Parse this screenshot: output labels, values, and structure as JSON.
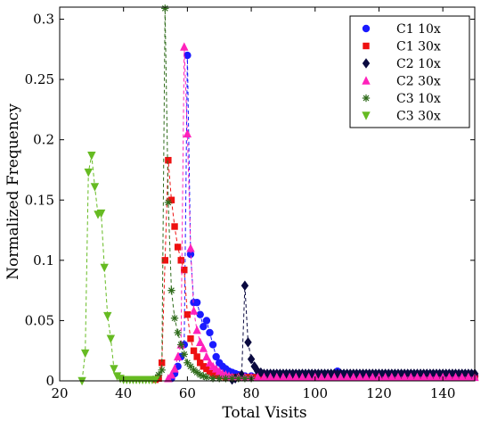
{
  "chart_data": {
    "type": "scatter",
    "xlabel": "Total Visits",
    "ylabel": "Normalized Frequency",
    "xlim": [
      20,
      150
    ],
    "ylim": [
      0,
      0.31
    ],
    "xticks": [
      "20",
      "40",
      "60",
      "80",
      "100",
      "120",
      "140"
    ],
    "yticks": [
      "0",
      "0.05",
      "0.1",
      "0.15",
      "0.2",
      "0.25",
      "0.3"
    ],
    "grid": false,
    "legend_position": "top-right",
    "line_style": "dashed",
    "series": [
      {
        "name": "C1 10x",
        "marker": "circle",
        "color": "#1a1aff",
        "points": [
          [
            55,
            0.002
          ],
          [
            56,
            0.006
          ],
          [
            57,
            0.012
          ],
          [
            58,
            0.02
          ],
          [
            59,
            0.03
          ],
          [
            60,
            0.27
          ],
          [
            61,
            0.105
          ],
          [
            62,
            0.065
          ],
          [
            63,
            0.065
          ],
          [
            64,
            0.055
          ],
          [
            65,
            0.045
          ],
          [
            66,
            0.05
          ],
          [
            67,
            0.04
          ],
          [
            68,
            0.03
          ],
          [
            69,
            0.02
          ],
          [
            70,
            0.015
          ],
          [
            71,
            0.012
          ],
          [
            72,
            0.01
          ],
          [
            73,
            0.008
          ],
          [
            74,
            0.007
          ],
          [
            75,
            0.006
          ],
          [
            76,
            0.005
          ],
          [
            78,
            0.004
          ],
          [
            80,
            0.004
          ],
          [
            82,
            0.004
          ],
          [
            84,
            0.004
          ],
          [
            86,
            0.004
          ],
          [
            88,
            0.004
          ],
          [
            90,
            0.004
          ],
          [
            92,
            0.004
          ],
          [
            94,
            0.004
          ],
          [
            96,
            0.004
          ],
          [
            98,
            0.004
          ],
          [
            100,
            0.004
          ],
          [
            102,
            0.004
          ],
          [
            104,
            0.004
          ],
          [
            106,
            0.004
          ],
          [
            107,
            0.008
          ],
          [
            108,
            0.006
          ],
          [
            110,
            0.004
          ],
          [
            112,
            0.004
          ],
          [
            114,
            0.004
          ],
          [
            116,
            0.004
          ],
          [
            118,
            0.004
          ],
          [
            120,
            0.004
          ],
          [
            122,
            0.004
          ],
          [
            124,
            0.004
          ],
          [
            126,
            0.004
          ],
          [
            128,
            0.004
          ],
          [
            130,
            0.004
          ],
          [
            132,
            0.004
          ],
          [
            134,
            0.004
          ],
          [
            136,
            0.004
          ],
          [
            138,
            0.004
          ],
          [
            140,
            0.004
          ],
          [
            142,
            0.004
          ],
          [
            144,
            0.004
          ],
          [
            146,
            0.004
          ],
          [
            148,
            0.004
          ],
          [
            150,
            0.004
          ]
        ]
      },
      {
        "name": "C1 30x",
        "marker": "square",
        "color": "#ee1111",
        "points": [
          [
            50,
            0.001
          ],
          [
            51,
            0.002
          ],
          [
            52,
            0.015
          ],
          [
            53,
            0.1
          ],
          [
            54,
            0.183
          ],
          [
            55,
            0.15
          ],
          [
            56,
            0.128
          ],
          [
            57,
            0.111
          ],
          [
            58,
            0.1
          ],
          [
            59,
            0.092
          ],
          [
            60,
            0.055
          ],
          [
            61,
            0.035
          ],
          [
            62,
            0.025
          ],
          [
            63,
            0.02
          ],
          [
            64,
            0.015
          ],
          [
            65,
            0.012
          ],
          [
            66,
            0.01
          ],
          [
            67,
            0.008
          ],
          [
            68,
            0.006
          ],
          [
            69,
            0.005
          ],
          [
            70,
            0.004
          ],
          [
            72,
            0.003
          ],
          [
            74,
            0.003
          ],
          [
            76,
            0.003
          ],
          [
            78,
            0.003
          ],
          [
            80,
            0.003
          ],
          [
            82,
            0.003
          ],
          [
            84,
            0.003
          ],
          [
            86,
            0.003
          ],
          [
            88,
            0.003
          ],
          [
            90,
            0.003
          ],
          [
            92,
            0.003
          ],
          [
            94,
            0.003
          ],
          [
            96,
            0.003
          ],
          [
            98,
            0.003
          ],
          [
            100,
            0.003
          ],
          [
            102,
            0.003
          ],
          [
            104,
            0.003
          ],
          [
            106,
            0.003
          ],
          [
            108,
            0.003
          ],
          [
            110,
            0.003
          ],
          [
            112,
            0.003
          ],
          [
            114,
            0.003
          ],
          [
            116,
            0.003
          ],
          [
            118,
            0.003
          ],
          [
            120,
            0.003
          ],
          [
            122,
            0.003
          ],
          [
            124,
            0.003
          ],
          [
            126,
            0.003
          ],
          [
            128,
            0.003
          ],
          [
            130,
            0.003
          ],
          [
            132,
            0.003
          ],
          [
            134,
            0.003
          ],
          [
            136,
            0.003
          ],
          [
            138,
            0.003
          ],
          [
            140,
            0.003
          ],
          [
            142,
            0.003
          ],
          [
            144,
            0.003
          ],
          [
            146,
            0.003
          ],
          [
            148,
            0.003
          ],
          [
            150,
            0.003
          ]
        ]
      },
      {
        "name": "C2 10x",
        "marker": "diamond",
        "color": "#0a0a40",
        "points": [
          [
            74,
            0.001
          ],
          [
            75,
            0.002
          ],
          [
            76,
            0.003
          ],
          [
            77,
            0.005
          ],
          [
            78,
            0.079
          ],
          [
            79,
            0.032
          ],
          [
            80,
            0.018
          ],
          [
            81,
            0.012
          ],
          [
            82,
            0.008
          ],
          [
            83,
            0.007
          ],
          [
            84,
            0.006
          ],
          [
            85,
            0.006
          ],
          [
            86,
            0.006
          ],
          [
            87,
            0.006
          ],
          [
            88,
            0.006
          ],
          [
            89,
            0.006
          ],
          [
            90,
            0.006
          ],
          [
            91,
            0.006
          ],
          [
            92,
            0.006
          ],
          [
            93,
            0.006
          ],
          [
            94,
            0.006
          ],
          [
            95,
            0.006
          ],
          [
            96,
            0.006
          ],
          [
            97,
            0.006
          ],
          [
            98,
            0.006
          ],
          [
            99,
            0.006
          ],
          [
            100,
            0.006
          ],
          [
            101,
            0.006
          ],
          [
            102,
            0.006
          ],
          [
            103,
            0.006
          ],
          [
            104,
            0.006
          ],
          [
            105,
            0.006
          ],
          [
            106,
            0.006
          ],
          [
            107,
            0.006
          ],
          [
            108,
            0.006
          ],
          [
            109,
            0.006
          ],
          [
            110,
            0.006
          ],
          [
            111,
            0.006
          ],
          [
            112,
            0.006
          ],
          [
            113,
            0.006
          ],
          [
            114,
            0.006
          ],
          [
            115,
            0.006
          ],
          [
            116,
            0.006
          ],
          [
            117,
            0.006
          ],
          [
            118,
            0.006
          ],
          [
            119,
            0.006
          ],
          [
            120,
            0.006
          ],
          [
            121,
            0.006
          ],
          [
            122,
            0.006
          ],
          [
            123,
            0.006
          ],
          [
            124,
            0.006
          ],
          [
            125,
            0.006
          ],
          [
            126,
            0.006
          ],
          [
            127,
            0.006
          ],
          [
            128,
            0.006
          ],
          [
            129,
            0.006
          ],
          [
            130,
            0.006
          ],
          [
            131,
            0.006
          ],
          [
            132,
            0.006
          ],
          [
            133,
            0.006
          ],
          [
            134,
            0.006
          ],
          [
            135,
            0.006
          ],
          [
            136,
            0.006
          ],
          [
            137,
            0.006
          ],
          [
            138,
            0.006
          ],
          [
            139,
            0.006
          ],
          [
            140,
            0.006
          ],
          [
            141,
            0.006
          ],
          [
            142,
            0.006
          ],
          [
            143,
            0.006
          ],
          [
            144,
            0.006
          ],
          [
            145,
            0.006
          ],
          [
            146,
            0.006
          ],
          [
            147,
            0.006
          ],
          [
            148,
            0.006
          ],
          [
            149,
            0.006
          ],
          [
            150,
            0.006
          ]
        ]
      },
      {
        "name": "C2 30x",
        "marker": "triangle-up",
        "color": "#ff22bb",
        "points": [
          [
            54,
            0.002
          ],
          [
            55,
            0.005
          ],
          [
            56,
            0.01
          ],
          [
            57,
            0.02
          ],
          [
            58,
            0.03
          ],
          [
            59,
            0.277
          ],
          [
            60,
            0.205
          ],
          [
            61,
            0.11
          ],
          [
            62,
            0.058
          ],
          [
            63,
            0.042
          ],
          [
            64,
            0.032
          ],
          [
            65,
            0.027
          ],
          [
            66,
            0.02
          ],
          [
            67,
            0.015
          ],
          [
            68,
            0.012
          ],
          [
            69,
            0.01
          ],
          [
            70,
            0.008
          ],
          [
            71,
            0.006
          ],
          [
            72,
            0.005
          ],
          [
            73,
            0.004
          ],
          [
            74,
            0.003
          ],
          [
            76,
            0.003
          ],
          [
            78,
            0.003
          ],
          [
            80,
            0.003
          ],
          [
            82,
            0.003
          ],
          [
            84,
            0.003
          ],
          [
            86,
            0.003
          ],
          [
            88,
            0.003
          ],
          [
            90,
            0.003
          ],
          [
            92,
            0.003
          ],
          [
            94,
            0.003
          ],
          [
            96,
            0.003
          ],
          [
            98,
            0.003
          ],
          [
            100,
            0.003
          ],
          [
            102,
            0.003
          ],
          [
            104,
            0.003
          ],
          [
            106,
            0.003
          ],
          [
            108,
            0.003
          ],
          [
            110,
            0.003
          ],
          [
            112,
            0.003
          ],
          [
            114,
            0.003
          ],
          [
            116,
            0.003
          ],
          [
            118,
            0.003
          ],
          [
            120,
            0.003
          ],
          [
            122,
            0.003
          ],
          [
            124,
            0.003
          ],
          [
            126,
            0.003
          ],
          [
            128,
            0.003
          ],
          [
            130,
            0.003
          ],
          [
            132,
            0.003
          ],
          [
            134,
            0.003
          ],
          [
            136,
            0.003
          ],
          [
            138,
            0.003
          ],
          [
            140,
            0.003
          ],
          [
            142,
            0.003
          ],
          [
            144,
            0.003
          ],
          [
            146,
            0.003
          ],
          [
            148,
            0.003
          ],
          [
            150,
            0.003
          ]
        ]
      },
      {
        "name": "C3 10x",
        "marker": "asterisk",
        "color": "#2e6b1a",
        "points": [
          [
            50,
            0.002
          ],
          [
            51,
            0.005
          ],
          [
            52,
            0.009
          ],
          [
            53,
            0.309
          ],
          [
            54,
            0.148
          ],
          [
            55,
            0.075
          ],
          [
            56,
            0.052
          ],
          [
            57,
            0.04
          ],
          [
            58,
            0.03
          ],
          [
            59,
            0.022
          ],
          [
            60,
            0.015
          ],
          [
            61,
            0.012
          ],
          [
            62,
            0.009
          ],
          [
            63,
            0.007
          ],
          [
            64,
            0.005
          ],
          [
            65,
            0.004
          ],
          [
            66,
            0.003
          ],
          [
            68,
            0.002
          ],
          [
            70,
            0.002
          ],
          [
            72,
            0.002
          ],
          [
            74,
            0.002
          ],
          [
            76,
            0.002
          ],
          [
            78,
            0.002
          ],
          [
            80,
            0.002
          ]
        ]
      },
      {
        "name": "C3 30x",
        "marker": "triangle-down",
        "color": "#66bb22",
        "points": [
          [
            27,
            0.0
          ],
          [
            28,
            0.023
          ],
          [
            29,
            0.173
          ],
          [
            30,
            0.187
          ],
          [
            31,
            0.161
          ],
          [
            32,
            0.138
          ],
          [
            33,
            0.139
          ],
          [
            34,
            0.094
          ],
          [
            35,
            0.054
          ],
          [
            36,
            0.035
          ],
          [
            37,
            0.01
          ],
          [
            38,
            0.004
          ],
          [
            39,
            0.002
          ],
          [
            40,
            0.001
          ],
          [
            41,
            0.001
          ],
          [
            42,
            0.001
          ],
          [
            43,
            0.001
          ],
          [
            44,
            0.001
          ],
          [
            45,
            0.001
          ],
          [
            46,
            0.001
          ],
          [
            47,
            0.001
          ],
          [
            48,
            0.001
          ],
          [
            49,
            0.001
          ],
          [
            50,
            0.001
          ]
        ]
      }
    ]
  }
}
